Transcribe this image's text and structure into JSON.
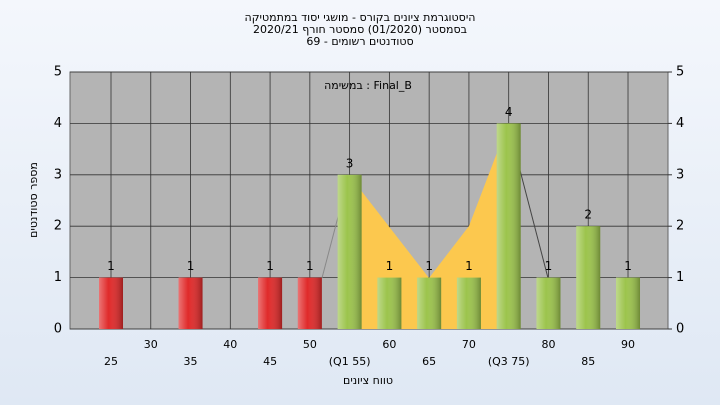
{
  "chart_data": {
    "type": "bar",
    "title": [
      "היסטוגרמת ציונים בקורס - מושגי יסוד במתמטיקה",
      "בסמסטר  (01/2020)  סמסטר חורף 2020/21",
      "סטודנטים רשומים - 69"
    ],
    "annotation": "במשימה : Final_B",
    "x_label": "טווח ציונים",
    "y_label": "מספר סטודנטים",
    "categories": [
      "25",
      "30",
      "35",
      "40",
      "45",
      "50",
      "(Q1 55)",
      "60",
      "65",
      "70",
      "(Q3 75)",
      "80",
      "85",
      "90"
    ],
    "values": [
      1,
      0,
      1,
      0,
      1,
      1,
      3,
      1,
      1,
      1,
      4,
      1,
      2,
      1
    ],
    "colors": [
      "#e02a2a",
      "#e02a2a",
      "#e02a2a",
      "#e02a2a",
      "#e02a2a",
      "#e02a2a",
      "#9cc44c",
      "#9cc44c",
      "#9cc44c",
      "#9cc44c",
      "#9cc44c",
      "#9cc44c",
      "#9cc44c",
      "#9cc44c"
    ],
    "ylim": [
      0,
      5
    ],
    "yticks": [
      0,
      1,
      2,
      3,
      4,
      5
    ],
    "y2lim": [
      0,
      5
    ],
    "y2ticks": [
      0,
      1,
      2,
      3,
      4,
      5
    ],
    "grid": true
  }
}
